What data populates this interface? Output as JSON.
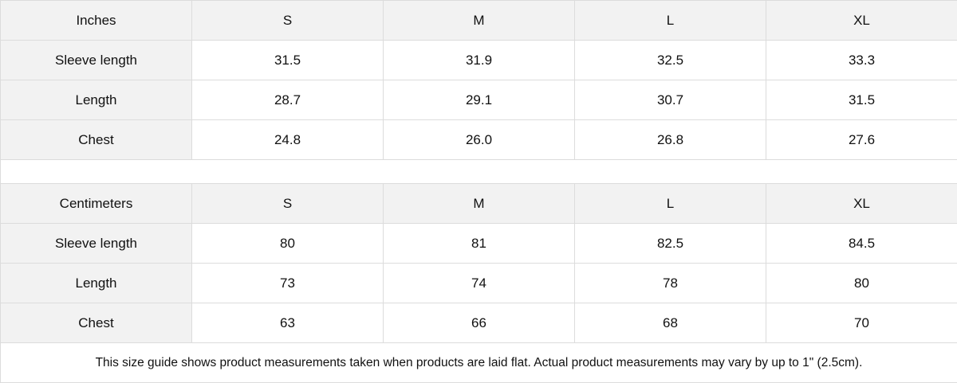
{
  "tables": [
    {
      "unit": "Inches",
      "sizes": [
        "S",
        "M",
        "L",
        "XL"
      ],
      "rows": [
        {
          "label": "Sleeve length",
          "values": [
            "31.5",
            "31.9",
            "32.5",
            "33.3"
          ]
        },
        {
          "label": "Length",
          "values": [
            "28.7",
            "29.1",
            "30.7",
            "31.5"
          ]
        },
        {
          "label": "Chest",
          "values": [
            "24.8",
            "26.0",
            "26.8",
            "27.6"
          ]
        }
      ]
    },
    {
      "unit": "Centimeters",
      "sizes": [
        "S",
        "M",
        "L",
        "XL"
      ],
      "rows": [
        {
          "label": "Sleeve length",
          "values": [
            "80",
            "81",
            "82.5",
            "84.5"
          ]
        },
        {
          "label": "Length",
          "values": [
            "73",
            "74",
            "78",
            "80"
          ]
        },
        {
          "label": "Chest",
          "values": [
            "63",
            "66",
            "68",
            "70"
          ]
        }
      ]
    }
  ],
  "footnote": "This size guide shows product measurements taken when products are laid flat.  Actual product measurements may vary by up to 1\" (2.5cm).",
  "colors": {
    "header_bg": "#f2f2f2",
    "border": "#dcdcdc"
  }
}
